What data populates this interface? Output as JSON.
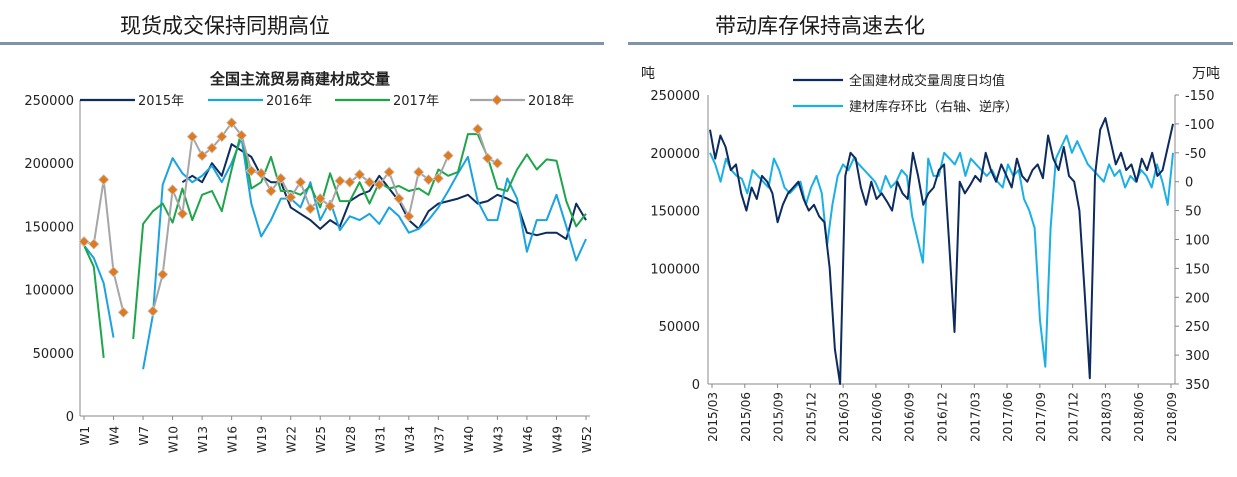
{
  "left_panel": {
    "section_title": "现货成交保持同期高位"
  },
  "right_panel": {
    "section_title": "带动库存保持高速去化"
  },
  "chart_data": [
    {
      "type": "line",
      "title": "全国主流贸易商建材成交量",
      "xlabel": "",
      "ylabel": "",
      "ylim": [
        0,
        250000
      ],
      "yticks": [
        0,
        50000,
        100000,
        150000,
        200000,
        250000
      ],
      "weeks": [
        "W1",
        "W2",
        "W3",
        "W4",
        "W5",
        "W6",
        "W7",
        "W8",
        "W9",
        "W10",
        "W11",
        "W12",
        "W13",
        "W14",
        "W15",
        "W16",
        "W17",
        "W18",
        "W19",
        "W20",
        "W21",
        "W22",
        "W23",
        "W24",
        "W25",
        "W26",
        "W27",
        "W28",
        "W29",
        "W30",
        "W31",
        "W32",
        "W33",
        "W34",
        "W35",
        "W36",
        "W37",
        "W38",
        "W39",
        "W40",
        "W41",
        "W42",
        "W43",
        "W44",
        "W45",
        "W46",
        "W47",
        "W48",
        "W49",
        "W50",
        "W51",
        "W52"
      ],
      "x_tick_labels": [
        "W1",
        "W4",
        "W7",
        "W10",
        "W13",
        "W16",
        "W19",
        "W22",
        "W25",
        "W28",
        "W31",
        "W34",
        "W37",
        "W40",
        "W43",
        "W46",
        "W49",
        "W52"
      ],
      "legend": [
        "2015年",
        "2016年",
        "2017年",
        "2018年"
      ],
      "legend_position": "top",
      "series": [
        {
          "name": "2015年",
          "color": "#0d2b5e",
          "marker": "none",
          "values": [
            null,
            null,
            null,
            null,
            null,
            null,
            null,
            null,
            null,
            null,
            185000,
            190000,
            185000,
            200000,
            190000,
            215000,
            210000,
            205000,
            190000,
            185000,
            185000,
            165000,
            160000,
            155000,
            148000,
            155000,
            150000,
            170000,
            175000,
            178000,
            190000,
            180000,
            170000,
            155000,
            148000,
            162000,
            168000,
            170000,
            172000,
            175000,
            168000,
            170000,
            175000,
            172000,
            168000,
            145000,
            143000,
            145000,
            145000,
            140000,
            168000,
            155000
          ]
        },
        {
          "name": "2016年",
          "color": "#1aa3e0",
          "marker": "none",
          "values": [
            135000,
            125000,
            105000,
            62000,
            null,
            null,
            37000,
            80000,
            183000,
            204000,
            192000,
            185000,
            190000,
            198000,
            185000,
            200000,
            220000,
            168000,
            142000,
            155000,
            172000,
            172000,
            165000,
            185000,
            155000,
            170000,
            147000,
            158000,
            155000,
            160000,
            152000,
            165000,
            158000,
            145000,
            148000,
            155000,
            165000,
            178000,
            192000,
            205000,
            170000,
            155000,
            155000,
            188000,
            172000,
            130000,
            155000,
            155000,
            175000,
            150000,
            123000,
            140000
          ]
        },
        {
          "name": "2017年",
          "color": "#1ea54a",
          "marker": "none",
          "values": [
            135000,
            118000,
            46000,
            null,
            null,
            61000,
            152000,
            162000,
            168000,
            153000,
            180000,
            155000,
            175000,
            178000,
            162000,
            195000,
            225000,
            180000,
            185000,
            205000,
            178000,
            178000,
            175000,
            182000,
            165000,
            192000,
            170000,
            170000,
            185000,
            168000,
            185000,
            180000,
            182000,
            178000,
            180000,
            175000,
            195000,
            190000,
            193000,
            223000,
            223000,
            205000,
            180000,
            178000,
            195000,
            207000,
            195000,
            203000,
            202000,
            170000,
            150000,
            160000
          ]
        },
        {
          "name": "2018年",
          "color": "#a6a6a6",
          "marker": "diamond",
          "marker_color": "#e07a1f",
          "values": [
            138000,
            136000,
            187000,
            114000,
            82000,
            null,
            null,
            83000,
            112000,
            179000,
            160000,
            221000,
            206000,
            212000,
            221000,
            232000,
            222000,
            194000,
            192000,
            178000,
            188000,
            173000,
            185000,
            164000,
            172000,
            166000,
            186000,
            185000,
            191000,
            185000,
            183000,
            193000,
            172000,
            158000,
            193000,
            187000,
            188000,
            206000,
            null,
            null,
            227000,
            204000,
            200000,
            null,
            null,
            null,
            null,
            null,
            null,
            null,
            null,
            null
          ]
        }
      ]
    },
    {
      "type": "line",
      "title": "",
      "ylabel_left": "吨",
      "ylabel_right": "万吨",
      "ylim_left": [
        0,
        250000
      ],
      "yticks_left": [
        0,
        50000,
        100000,
        150000,
        200000,
        250000
      ],
      "ylim_right_inverted": [
        -150,
        350
      ],
      "yticks_right": [
        -150,
        -100,
        -50,
        0,
        50,
        100,
        150,
        200,
        250,
        300,
        350
      ],
      "x_tick_labels": [
        "2015/03",
        "2015/06",
        "2015/09",
        "2015/12",
        "2016/03",
        "2016/06",
        "2016/09",
        "2016/12",
        "2017/03",
        "2017/06",
        "2017/09",
        "2017/12",
        "2018/03",
        "2018/06",
        "2018/09"
      ],
      "legend": [
        "全国建材成交量周度日均值",
        "建材库存环比（右轴、逆序）"
      ],
      "legend_position": "top",
      "series": [
        {
          "name": "全国建材成交量周度日均值",
          "axis": "left",
          "color": "#0d2b5e",
          "values": [
            220000,
            195000,
            215000,
            205000,
            185000,
            190000,
            165000,
            150000,
            170000,
            160000,
            180000,
            175000,
            165000,
            140000,
            155000,
            165000,
            170000,
            175000,
            160000,
            150000,
            155000,
            145000,
            140000,
            100000,
            30000,
            0,
            180000,
            200000,
            195000,
            170000,
            155000,
            175000,
            160000,
            165000,
            158000,
            150000,
            175000,
            165000,
            160000,
            200000,
            180000,
            155000,
            165000,
            170000,
            185000,
            190000,
            120000,
            45000,
            175000,
            165000,
            172000,
            180000,
            175000,
            200000,
            185000,
            175000,
            190000,
            180000,
            170000,
            195000,
            180000,
            175000,
            185000,
            190000,
            178000,
            215000,
            195000,
            185000,
            205000,
            180000,
            175000,
            150000,
            80000,
            5000,
            180000,
            220000,
            230000,
            210000,
            190000,
            200000,
            185000,
            190000,
            175000,
            195000,
            185000,
            200000,
            180000,
            185000,
            205000,
            225000
          ]
        },
        {
          "name": "建材库存环比（右轴、逆序）",
          "axis": "right",
          "color": "#1ab0e6",
          "values": [
            -50,
            -30,
            0,
            -40,
            -20,
            -10,
            -5,
            20,
            -20,
            -10,
            0,
            10,
            -40,
            -20,
            10,
            20,
            10,
            0,
            40,
            10,
            -10,
            20,
            110,
            40,
            -10,
            -30,
            -20,
            -40,
            -30,
            -20,
            -10,
            0,
            20,
            -10,
            10,
            0,
            -20,
            -10,
            60,
            100,
            140,
            -40,
            -10,
            -10,
            -50,
            -40,
            -30,
            -50,
            -10,
            -40,
            -30,
            -20,
            -10,
            -20,
            0,
            10,
            -30,
            -10,
            -20,
            30,
            50,
            80,
            240,
            320,
            80,
            -40,
            -60,
            -80,
            -50,
            -70,
            -50,
            -30,
            -20,
            -10,
            0,
            -30,
            -10,
            -20,
            10,
            -10,
            0,
            -20,
            -10,
            10,
            -30,
            0,
            40,
            -50
          ]
        }
      ]
    }
  ]
}
